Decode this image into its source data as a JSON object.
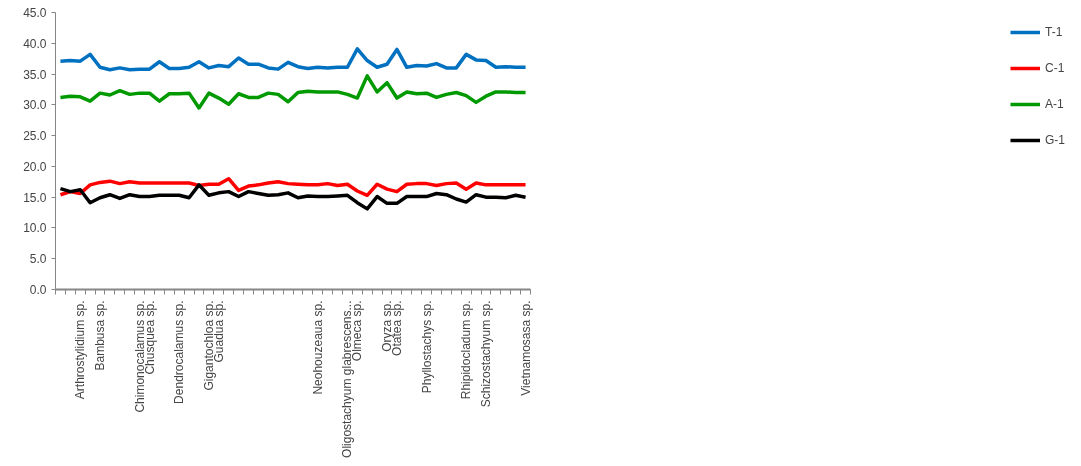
{
  "chart_data": {
    "type": "line",
    "categories": [
      null,
      null,
      "Arthrostylidium sp.",
      null,
      "Bambusa sp.",
      null,
      null,
      null,
      "Chimonocalamus sp.",
      "Chusquea sp.",
      null,
      null,
      "Dendrocalamus sp.",
      null,
      null,
      "Gigantochloa sp.",
      "Guadua sp.",
      null,
      null,
      null,
      null,
      null,
      null,
      null,
      null,
      null,
      "Neohouzeaua sp.",
      null,
      null,
      "Oligostachyum glabrescens...",
      "Olmeca sp.",
      null,
      null,
      "Oryza sp.",
      "Otatea sp.",
      null,
      null,
      "Phyllostachys sp.",
      null,
      null,
      null,
      "Rhipidocladum sp.",
      null,
      "Schizostachyum sp.",
      null,
      null,
      null,
      "Vietnamosasa sp."
    ],
    "series": [
      {
        "name": "T-1",
        "color": "#0070c0",
        "values": [
          37.1,
          37.2,
          37.1,
          38.2,
          36.1,
          35.7,
          36.0,
          35.7,
          35.8,
          35.8,
          37.0,
          35.9,
          35.9,
          36.1,
          37.0,
          36.0,
          36.4,
          36.2,
          37.6,
          36.6,
          36.6,
          36.0,
          35.8,
          36.9,
          36.2,
          35.9,
          36.1,
          36.0,
          36.1,
          36.1,
          39.1,
          37.2,
          36.1,
          36.6,
          39.0,
          36.1,
          36.4,
          36.3,
          36.7,
          36.0,
          36.0,
          38.2,
          37.3,
          37.2,
          36.1,
          36.2,
          36.1,
          36.1
        ]
      },
      {
        "name": "C-1",
        "color": "#ff0000",
        "values": [
          15.4,
          15.9,
          15.6,
          17.0,
          17.4,
          17.6,
          17.2,
          17.5,
          17.3,
          17.3,
          17.3,
          17.3,
          17.3,
          17.3,
          16.9,
          17.1,
          17.1,
          18.0,
          16.1,
          16.8,
          17.0,
          17.3,
          17.5,
          17.2,
          17.1,
          17.0,
          17.0,
          17.2,
          16.9,
          17.1,
          16.0,
          15.3,
          17.1,
          16.3,
          15.9,
          17.1,
          17.2,
          17.2,
          16.9,
          17.2,
          17.3,
          16.3,
          17.3,
          17.0,
          17.0,
          17.0,
          17.0,
          17.0
        ]
      },
      {
        "name": "A-1",
        "color": "#009900",
        "values": [
          31.2,
          31.4,
          31.3,
          30.6,
          31.9,
          31.6,
          32.3,
          31.7,
          31.9,
          31.9,
          30.6,
          31.8,
          31.8,
          31.9,
          29.5,
          31.9,
          31.1,
          30.1,
          31.8,
          31.2,
          31.2,
          31.9,
          31.7,
          30.5,
          32.0,
          32.2,
          32.1,
          32.1,
          32.1,
          31.7,
          31.1,
          34.7,
          32.1,
          33.6,
          31.1,
          32.1,
          31.8,
          31.9,
          31.2,
          31.7,
          32.0,
          31.5,
          30.4,
          31.4,
          32.1,
          32.1,
          32.0,
          32.0
        ]
      },
      {
        "name": "G-1",
        "color": "#000000",
        "values": [
          16.4,
          15.9,
          16.2,
          14.1,
          14.9,
          15.4,
          14.8,
          15.4,
          15.1,
          15.1,
          15.3,
          15.3,
          15.3,
          14.9,
          17.0,
          15.3,
          15.7,
          15.9,
          15.1,
          15.9,
          15.6,
          15.3,
          15.4,
          15.7,
          14.9,
          15.2,
          15.1,
          15.1,
          15.2,
          15.3,
          14.1,
          13.1,
          15.1,
          14.0,
          14.0,
          15.1,
          15.1,
          15.1,
          15.6,
          15.4,
          14.7,
          14.2,
          15.4,
          15.0,
          15.0,
          14.9,
          15.3,
          15.0
        ]
      }
    ],
    "ylim": [
      0,
      45
    ],
    "yticks": [
      {
        "value": 0,
        "label": "0.0"
      },
      {
        "value": 5,
        "label": "5.0"
      },
      {
        "value": 10,
        "label": "10.0"
      },
      {
        "value": 15,
        "label": "15.0"
      },
      {
        "value": 20,
        "label": "20.0"
      },
      {
        "value": 25,
        "label": "25.0"
      },
      {
        "value": 30,
        "label": "30.0"
      },
      {
        "value": 35,
        "label": "35.0"
      },
      {
        "value": 40,
        "label": "40.0"
      },
      {
        "value": 45,
        "label": "45.0"
      }
    ],
    "grid": false,
    "legend": "right",
    "marker": "none",
    "line_style": "solid"
  }
}
